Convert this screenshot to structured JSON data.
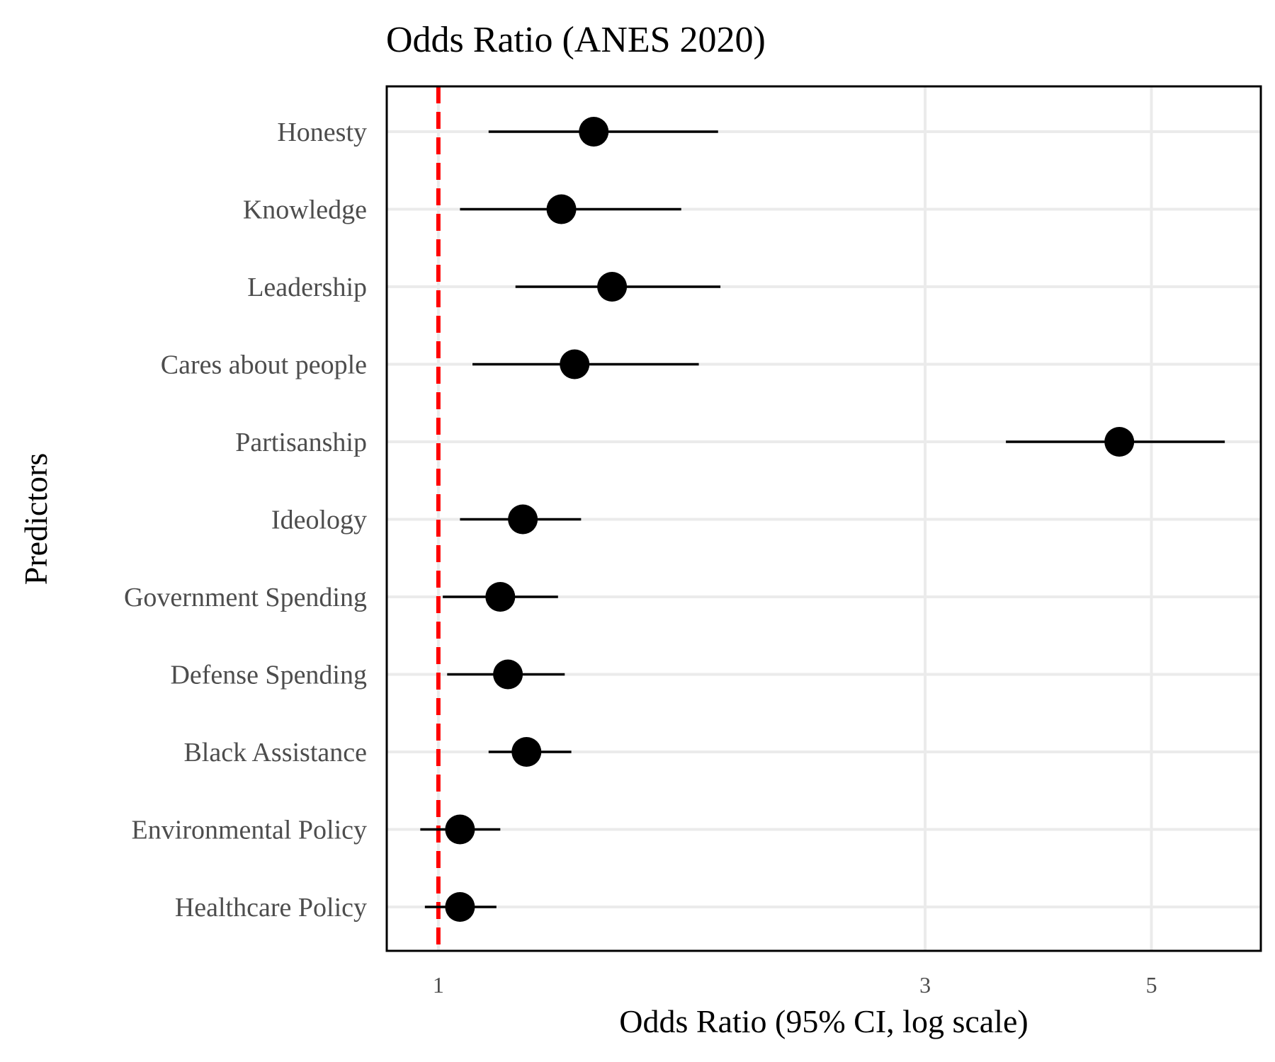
{
  "chart_data": {
    "type": "scatter",
    "title": "Odds Ratio (ANES 2020)",
    "xlabel": "Odds Ratio (95% CI, log scale)",
    "ylabel": "Predictors",
    "x_scale": "log",
    "xlim": [
      0.89,
      6.4
    ],
    "x_ticks": [
      {
        "value": 1,
        "label": "1"
      },
      {
        "value": 3,
        "label": "3"
      },
      {
        "value": 5,
        "label": "5"
      }
    ],
    "reference_line": {
      "value": 1,
      "color": "#ff0000",
      "style": "dashed"
    },
    "grid": true,
    "points": [
      {
        "label": "Honesty",
        "estimate": 1.42,
        "ci_low": 1.12,
        "ci_high": 1.88
      },
      {
        "label": "Knowledge",
        "estimate": 1.32,
        "ci_low": 1.05,
        "ci_high": 1.73
      },
      {
        "label": "Leadership",
        "estimate": 1.48,
        "ci_low": 1.19,
        "ci_high": 1.89
      },
      {
        "label": "Cares about people",
        "estimate": 1.36,
        "ci_low": 1.08,
        "ci_high": 1.8
      },
      {
        "label": "Partisanship",
        "estimate": 4.65,
        "ci_low": 3.6,
        "ci_high": 5.9
      },
      {
        "label": "Ideology",
        "estimate": 1.21,
        "ci_low": 1.05,
        "ci_high": 1.38
      },
      {
        "label": "Government Spending",
        "estimate": 1.15,
        "ci_low": 1.01,
        "ci_high": 1.31
      },
      {
        "label": "Defense Spending",
        "estimate": 1.17,
        "ci_low": 1.02,
        "ci_high": 1.33
      },
      {
        "label": "Black Assistance",
        "estimate": 1.22,
        "ci_low": 1.12,
        "ci_high": 1.35
      },
      {
        "label": "Environmental Policy",
        "estimate": 1.05,
        "ci_low": 0.96,
        "ci_high": 1.15
      },
      {
        "label": "Healthcare Policy",
        "estimate": 1.05,
        "ci_low": 0.97,
        "ci_high": 1.14
      }
    ]
  }
}
